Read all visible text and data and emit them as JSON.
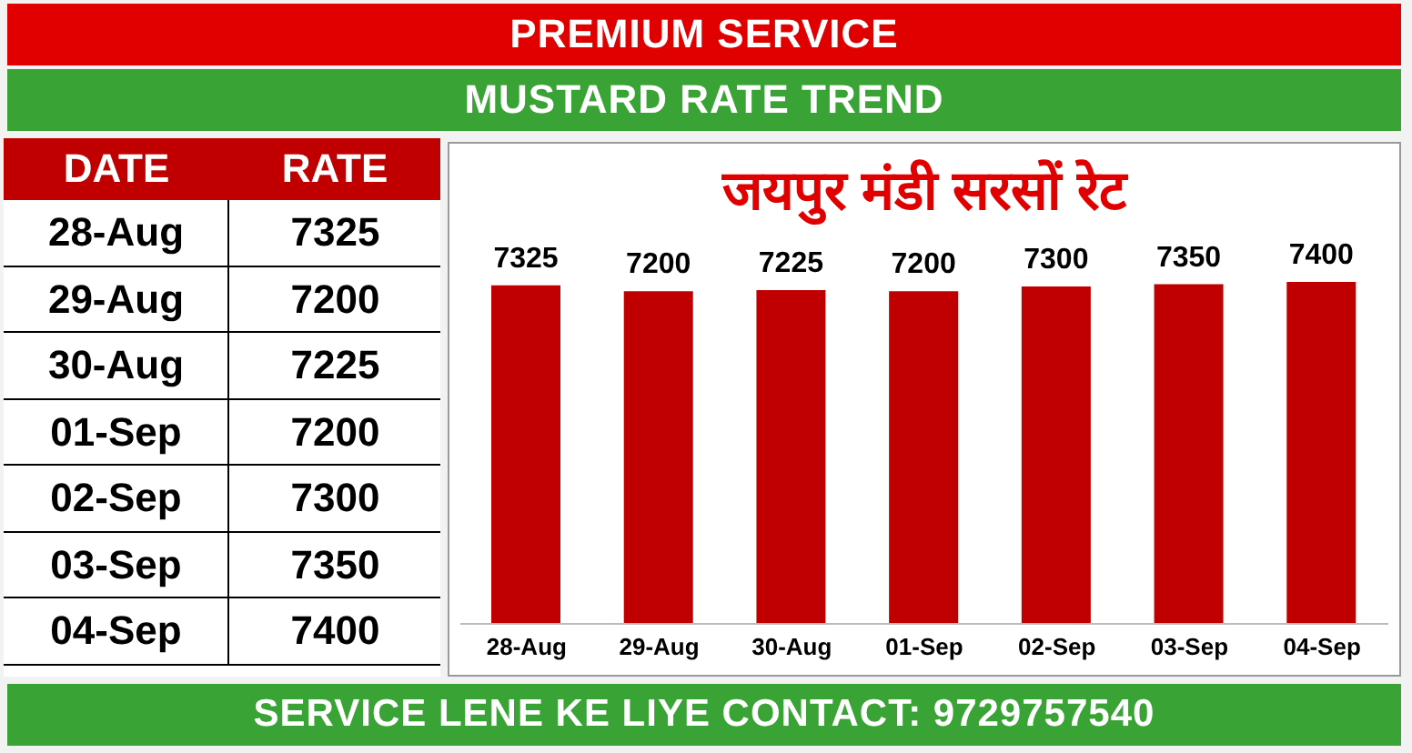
{
  "chart_data": {
    "type": "bar",
    "title": "PREMIUM SERVICE",
    "subtitle": "MUSTARD RATE TREND",
    "annotations": [
      "जयपुर मंडी सरसों रेट",
      "SERVICE LENE KE LIYE CONTACT: 9729757540",
      "DATE",
      "RATE",
      "7325",
      "7200",
      "7225",
      "7200",
      "7300",
      "7350",
      "7400"
    ],
    "categories": [
      "28-Aug",
      "29-Aug",
      "30-Aug",
      "01-Sep",
      "02-Sep",
      "03-Sep",
      "04-Sep"
    ],
    "values": [
      7325,
      7200,
      7225,
      7200,
      7300,
      7350,
      7400
    ],
    "color": "#c00000",
    "data_labels": true,
    "grid": false,
    "legend": false
  }
}
